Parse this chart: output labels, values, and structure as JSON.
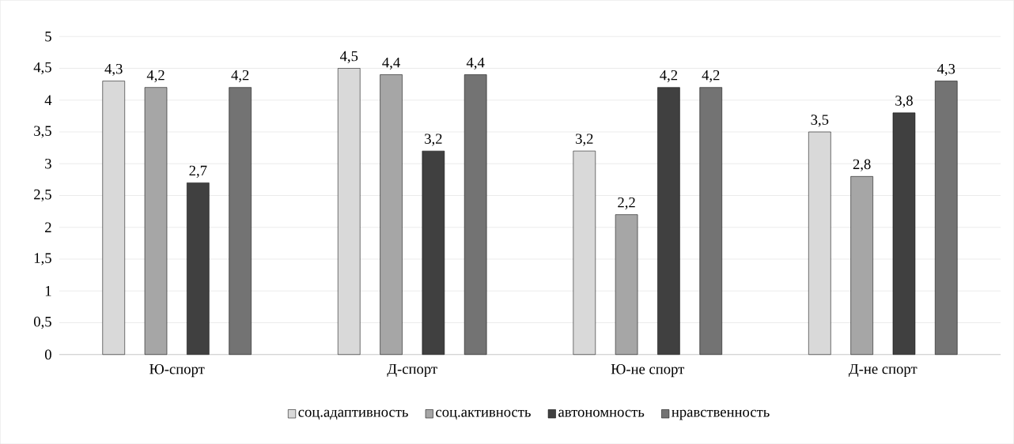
{
  "chart_data": {
    "type": "bar",
    "categories": [
      "Ю-спорт",
      "Д-спорт",
      "Ю-не спорт",
      "Д-не спорт"
    ],
    "series": [
      {
        "name": "соц.адаптивность",
        "color": "#000000",
        "values": [
          4.3,
          4.5,
          3.2,
          3.5
        ],
        "value_labels": [
          "4,3",
          "4,5",
          "3,2",
          "3,5"
        ]
      },
      {
        "name": "соц.активность",
        "color": "#000000",
        "values": [
          4.2,
          4.4,
          2.2,
          2.8
        ],
        "value_labels": [
          "4,2",
          "4,4",
          "2,2",
          "2,8"
        ]
      },
      {
        "name": "автономность",
        "color": "#000000",
        "values": [
          2.7,
          3.2,
          4.2,
          3.8
        ],
        "value_labels": [
          "2,7",
          "3,2",
          "4,2",
          "3,8"
        ]
      },
      {
        "name": "нравственность",
        "color": "#000000",
        "values": [
          4.2,
          4.4,
          4.2,
          4.3
        ],
        "value_labels": [
          "4,2",
          "4,4",
          "4,2",
          "4,3"
        ]
      }
    ],
    "ylim": [
      0,
      5
    ],
    "yticks": [
      0,
      {
        "value": 0.5,
        "label": "0,5"
      },
      1,
      {
        "value": 1.5,
        "label": "1,5"
      },
      2,
      {
        "value": 2.5,
        "label": "2,5"
      },
      3,
      {
        "value": 3.5,
        "label": "3,5"
      },
      4,
      {
        "value": 4.5,
        "label": "4,5"
      },
      5
    ],
    "grid": "y",
    "legend": "bottom"
  }
}
